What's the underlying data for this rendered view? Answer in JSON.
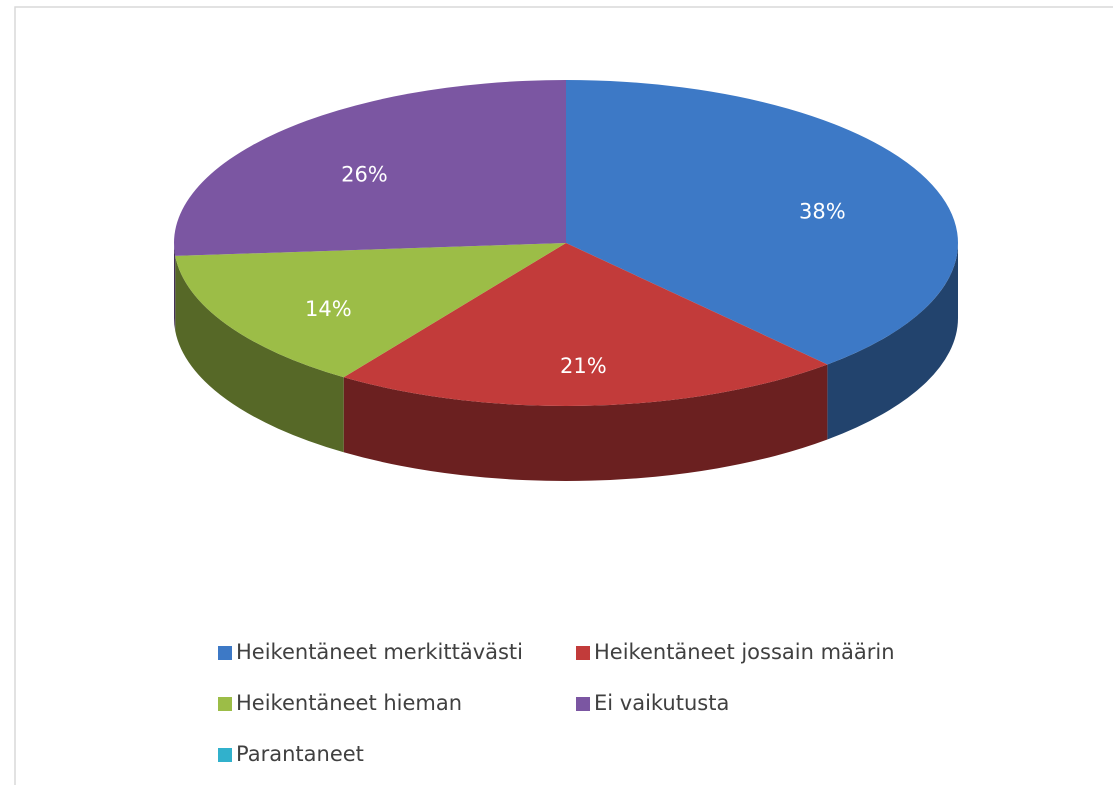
{
  "chart_data": {
    "type": "pie3d",
    "categories": [
      "Heikentäneet merkittävästi",
      "Heikentäneet jossain määrin",
      "Heikentäneet hieman",
      "Ei vaikutusta",
      "Parantaneet"
    ],
    "values": [
      38,
      21,
      14,
      26,
      0
    ],
    "value_labels": [
      "38%",
      "21%",
      "14%",
      "26%",
      null
    ],
    "colors": [
      "#3d79c6",
      "#c23b3a",
      "#9cbd47",
      "#7b56a2",
      "#31b1cc"
    ],
    "legend": "bottom"
  }
}
